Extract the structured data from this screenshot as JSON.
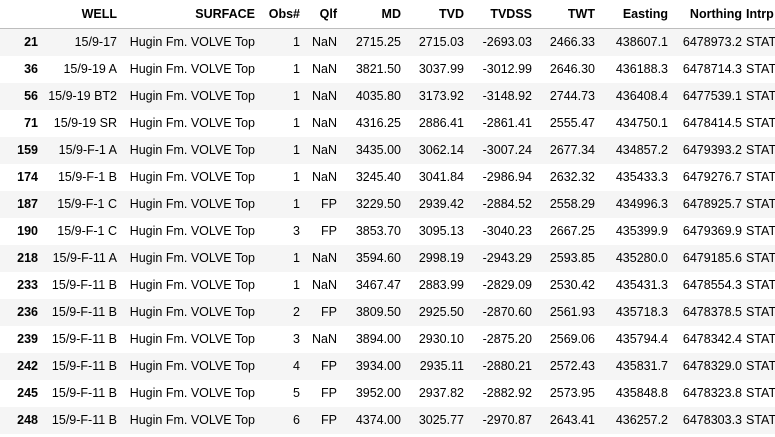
{
  "table": {
    "columns": [
      "",
      "WELL",
      "SURFACE",
      "Obs#",
      "Qlf",
      "MD",
      "TVD",
      "TVDSS",
      "TWT",
      "Easting",
      "Northing",
      "Intrp"
    ],
    "rows": [
      {
        "index": "21",
        "well": "15/9-17",
        "surface": "Hugin Fm. VOLVE Top",
        "obs": "1",
        "qlf": "NaN",
        "md": "2715.25",
        "tvd": "2715.03",
        "tvdss": "-2693.03",
        "twt": "2466.33",
        "easting": "438607.1",
        "northing": "6478973.2",
        "intrp": "STAT"
      },
      {
        "index": "36",
        "well": "15/9-19 A",
        "surface": "Hugin Fm. VOLVE Top",
        "obs": "1",
        "qlf": "NaN",
        "md": "3821.50",
        "tvd": "3037.99",
        "tvdss": "-3012.99",
        "twt": "2646.30",
        "easting": "436188.3",
        "northing": "6478714.3",
        "intrp": "STAT"
      },
      {
        "index": "56",
        "well": "15/9-19 BT2",
        "surface": "Hugin Fm. VOLVE Top",
        "obs": "1",
        "qlf": "NaN",
        "md": "4035.80",
        "tvd": "3173.92",
        "tvdss": "-3148.92",
        "twt": "2744.73",
        "easting": "436408.4",
        "northing": "6477539.1",
        "intrp": "STAT"
      },
      {
        "index": "71",
        "well": "15/9-19 SR",
        "surface": "Hugin Fm. VOLVE Top",
        "obs": "1",
        "qlf": "NaN",
        "md": "4316.25",
        "tvd": "2886.41",
        "tvdss": "-2861.41",
        "twt": "2555.47",
        "easting": "434750.1",
        "northing": "6478414.5",
        "intrp": "STAT"
      },
      {
        "index": "159",
        "well": "15/9-F-1 A",
        "surface": "Hugin Fm. VOLVE Top",
        "obs": "1",
        "qlf": "NaN",
        "md": "3435.00",
        "tvd": "3062.14",
        "tvdss": "-3007.24",
        "twt": "2677.34",
        "easting": "434857.2",
        "northing": "6479393.2",
        "intrp": "STAT"
      },
      {
        "index": "174",
        "well": "15/9-F-1 B",
        "surface": "Hugin Fm. VOLVE Top",
        "obs": "1",
        "qlf": "NaN",
        "md": "3245.40",
        "tvd": "3041.84",
        "tvdss": "-2986.94",
        "twt": "2632.32",
        "easting": "435433.3",
        "northing": "6479276.7",
        "intrp": "STAT"
      },
      {
        "index": "187",
        "well": "15/9-F-1 C",
        "surface": "Hugin Fm. VOLVE Top",
        "obs": "1",
        "qlf": "FP",
        "md": "3229.50",
        "tvd": "2939.42",
        "tvdss": "-2884.52",
        "twt": "2558.29",
        "easting": "434996.3",
        "northing": "6478925.7",
        "intrp": "STAT"
      },
      {
        "index": "190",
        "well": "15/9-F-1 C",
        "surface": "Hugin Fm. VOLVE Top",
        "obs": "3",
        "qlf": "FP",
        "md": "3853.70",
        "tvd": "3095.13",
        "tvdss": "-3040.23",
        "twt": "2667.25",
        "easting": "435399.9",
        "northing": "6479369.9",
        "intrp": "STAT"
      },
      {
        "index": "218",
        "well": "15/9-F-11 A",
        "surface": "Hugin Fm. VOLVE Top",
        "obs": "1",
        "qlf": "NaN",
        "md": "3594.60",
        "tvd": "2998.19",
        "tvdss": "-2943.29",
        "twt": "2593.85",
        "easting": "435280.0",
        "northing": "6479185.6",
        "intrp": "STAT"
      },
      {
        "index": "233",
        "well": "15/9-F-11 B",
        "surface": "Hugin Fm. VOLVE Top",
        "obs": "1",
        "qlf": "NaN",
        "md": "3467.47",
        "tvd": "2883.99",
        "tvdss": "-2829.09",
        "twt": "2530.42",
        "easting": "435431.3",
        "northing": "6478554.3",
        "intrp": "STAT"
      },
      {
        "index": "236",
        "well": "15/9-F-11 B",
        "surface": "Hugin Fm. VOLVE Top",
        "obs": "2",
        "qlf": "FP",
        "md": "3809.50",
        "tvd": "2925.50",
        "tvdss": "-2870.60",
        "twt": "2561.93",
        "easting": "435718.3",
        "northing": "6478378.5",
        "intrp": "STAT"
      },
      {
        "index": "239",
        "well": "15/9-F-11 B",
        "surface": "Hugin Fm. VOLVE Top",
        "obs": "3",
        "qlf": "NaN",
        "md": "3894.00",
        "tvd": "2930.10",
        "tvdss": "-2875.20",
        "twt": "2569.06",
        "easting": "435794.4",
        "northing": "6478342.4",
        "intrp": "STAT"
      },
      {
        "index": "242",
        "well": "15/9-F-11 B",
        "surface": "Hugin Fm. VOLVE Top",
        "obs": "4",
        "qlf": "FP",
        "md": "3934.00",
        "tvd": "2935.11",
        "tvdss": "-2880.21",
        "twt": "2572.43",
        "easting": "435831.7",
        "northing": "6478329.0",
        "intrp": "STAT"
      },
      {
        "index": "245",
        "well": "15/9-F-11 B",
        "surface": "Hugin Fm. VOLVE Top",
        "obs": "5",
        "qlf": "FP",
        "md": "3952.00",
        "tvd": "2937.82",
        "tvdss": "-2882.92",
        "twt": "2573.95",
        "easting": "435848.8",
        "northing": "6478323.8",
        "intrp": "STAT"
      },
      {
        "index": "248",
        "well": "15/9-F-11 B",
        "surface": "Hugin Fm. VOLVE Top",
        "obs": "6",
        "qlf": "FP",
        "md": "4374.00",
        "tvd": "3025.77",
        "tvdss": "-2970.87",
        "twt": "2643.41",
        "easting": "436257.2",
        "northing": "6478303.3",
        "intrp": "STAT"
      }
    ]
  }
}
